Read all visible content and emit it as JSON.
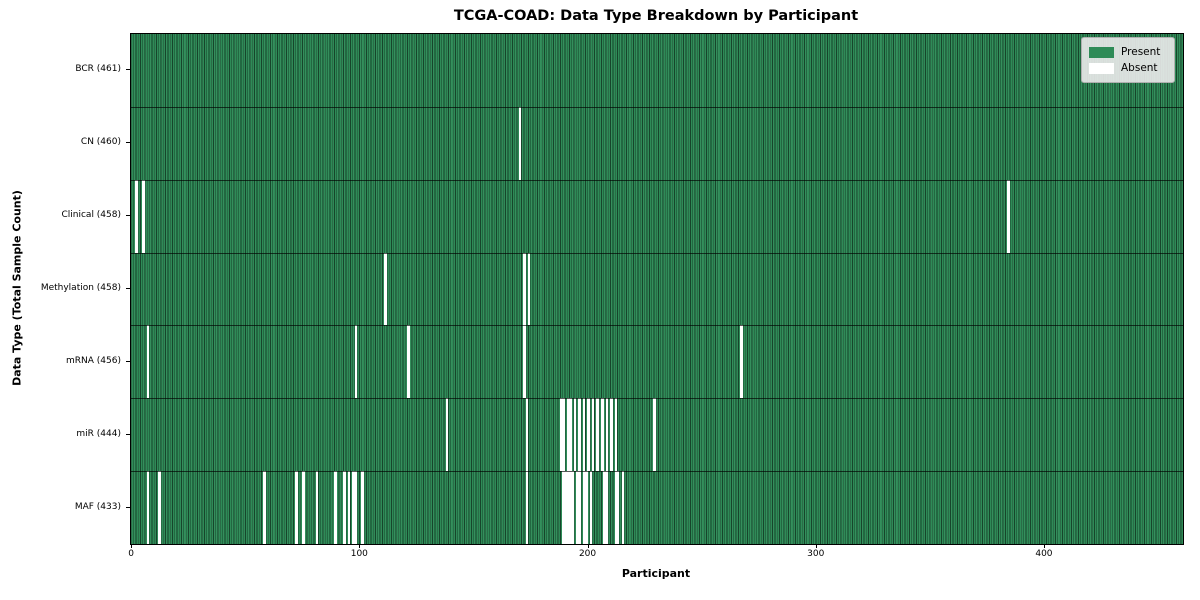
{
  "chart_data": {
    "type": "heatmap",
    "title": "TCGA-COAD: Data Type Breakdown by Participant",
    "xlabel": "Participant",
    "ylabel": "Data Type (Total Sample Count)",
    "x_ticks": [
      0,
      100,
      200,
      300,
      400
    ],
    "xlim": [
      -0.5,
      460.5
    ],
    "n_participants": 461,
    "grid": false,
    "legend_position": "upper right",
    "colors": {
      "present": "#2e8b57",
      "absent": "#ffffff",
      "bar_edge": "#174a2d",
      "legend_bg": "#e8e8e8"
    },
    "legend": [
      {
        "label": "Present",
        "color": "#2e8b57"
      },
      {
        "label": "Absent",
        "color": "#ffffff"
      }
    ],
    "rows": [
      {
        "label": "BCR (461)",
        "name": "BCR",
        "present_count": 461,
        "absent_participants": []
      },
      {
        "label": "CN (460)",
        "name": "CN",
        "present_count": 460,
        "absent_participants": [
          170
        ]
      },
      {
        "label": "Clinical (458)",
        "name": "Clinical",
        "present_count": 458,
        "absent_participants": [
          2,
          5,
          384
        ]
      },
      {
        "label": "Methylation (458)",
        "name": "Methylation",
        "present_count": 458,
        "absent_participants": [
          111,
          172,
          174
        ]
      },
      {
        "label": "mRNA (456)",
        "name": "mRNA",
        "present_count": 456,
        "absent_participants": [
          7,
          98,
          121,
          172,
          267
        ]
      },
      {
        "label": "miR (444)",
        "name": "miR",
        "present_count": 444,
        "absent_participants": [
          138,
          173,
          188,
          189,
          191,
          192,
          194,
          196,
          198,
          200,
          202,
          204,
          206,
          208,
          210,
          212,
          229
        ]
      },
      {
        "label": "MAF (433)",
        "name": "MAF",
        "present_count": 433,
        "absent_participants": [
          7,
          12,
          58,
          72,
          75,
          81,
          89,
          93,
          95,
          97,
          98,
          101,
          173,
          189,
          190,
          191,
          192,
          193,
          195,
          196,
          198,
          199,
          201,
          207,
          208,
          212,
          213,
          215
        ]
      }
    ]
  }
}
